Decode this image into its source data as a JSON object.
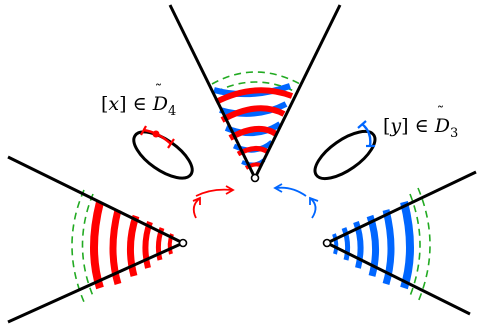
{
  "labels": {
    "left": {
      "var": "x",
      "membership": "∈",
      "set": "D",
      "sub": "4"
    },
    "right": {
      "var": "y",
      "membership": "∈",
      "set": "D",
      "sub": "3"
    }
  },
  "colors": {
    "red": "#ff0000",
    "blue": "#0066ff",
    "green_dashed": "#22aa22",
    "line": "#000000"
  }
}
